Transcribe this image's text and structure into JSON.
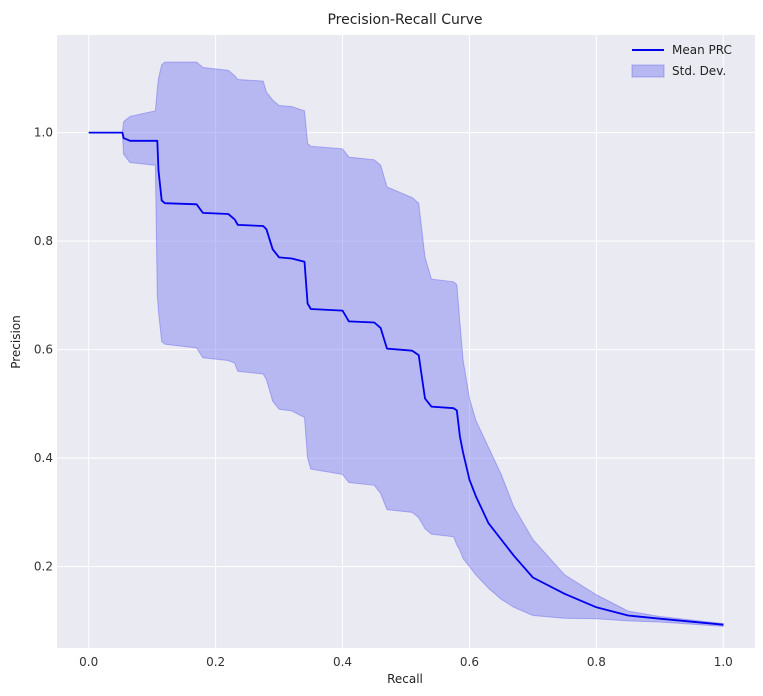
{
  "chart_data": {
    "type": "line",
    "title": "Precision-Recall Curve",
    "xlabel": "Recall",
    "ylabel": "Precision",
    "xlim": [
      -0.05,
      1.05
    ],
    "ylim": [
      0.05,
      1.18
    ],
    "xticks": [
      "0.0",
      "0.2",
      "0.4",
      "0.6",
      "0.8",
      "1.0"
    ],
    "yticks": [
      "0.2",
      "0.4",
      "0.6",
      "0.8",
      "1.0"
    ],
    "grid": true,
    "legend_position": "top-right",
    "background_color": "#eaeaf2",
    "series": [
      {
        "name": "Mean PRC",
        "kind": "line",
        "color": "#0000ee",
        "x": [
          0.0,
          0.053,
          0.055,
          0.065,
          0.108,
          0.11,
          0.115,
          0.12,
          0.17,
          0.18,
          0.22,
          0.23,
          0.235,
          0.275,
          0.28,
          0.29,
          0.3,
          0.32,
          0.34,
          0.345,
          0.35,
          0.4,
          0.41,
          0.45,
          0.46,
          0.47,
          0.51,
          0.52,
          0.53,
          0.54,
          0.575,
          0.58,
          0.585,
          0.59,
          0.6,
          0.61,
          0.63,
          0.65,
          0.67,
          0.7,
          0.75,
          0.8,
          0.85,
          0.9,
          1.0
        ],
        "y": [
          1.0,
          1.0,
          0.99,
          0.985,
          0.985,
          0.93,
          0.875,
          0.87,
          0.868,
          0.852,
          0.85,
          0.84,
          0.83,
          0.828,
          0.822,
          0.785,
          0.77,
          0.768,
          0.762,
          0.685,
          0.675,
          0.672,
          0.652,
          0.65,
          0.64,
          0.602,
          0.598,
          0.59,
          0.51,
          0.495,
          0.492,
          0.488,
          0.44,
          0.41,
          0.36,
          0.33,
          0.28,
          0.25,
          0.22,
          0.18,
          0.15,
          0.125,
          0.11,
          0.104,
          0.093
        ]
      },
      {
        "name": "Std. Dev.",
        "kind": "band",
        "color": "#6464ee",
        "x": [
          0.0,
          0.053,
          0.055,
          0.065,
          0.105,
          0.108,
          0.11,
          0.115,
          0.12,
          0.17,
          0.18,
          0.22,
          0.23,
          0.235,
          0.275,
          0.28,
          0.29,
          0.3,
          0.32,
          0.34,
          0.345,
          0.35,
          0.4,
          0.41,
          0.45,
          0.46,
          0.47,
          0.51,
          0.52,
          0.53,
          0.54,
          0.575,
          0.58,
          0.585,
          0.59,
          0.6,
          0.61,
          0.63,
          0.65,
          0.67,
          0.7,
          0.75,
          0.8,
          0.85,
          0.9,
          1.0
        ],
        "upper": [
          1.0,
          1.0,
          1.02,
          1.03,
          1.04,
          1.08,
          1.1,
          1.125,
          1.13,
          1.13,
          1.12,
          1.115,
          1.105,
          1.098,
          1.095,
          1.075,
          1.06,
          1.05,
          1.048,
          1.04,
          0.98,
          0.975,
          0.97,
          0.955,
          0.95,
          0.94,
          0.9,
          0.88,
          0.87,
          0.77,
          0.73,
          0.725,
          0.72,
          0.65,
          0.58,
          0.51,
          0.47,
          0.42,
          0.37,
          0.31,
          0.25,
          0.185,
          0.148,
          0.118,
          0.108,
          0.095
        ],
        "lower": [
          1.0,
          1.0,
          0.96,
          0.945,
          0.94,
          0.7,
          0.67,
          0.615,
          0.61,
          0.603,
          0.585,
          0.58,
          0.575,
          0.56,
          0.555,
          0.545,
          0.505,
          0.49,
          0.487,
          0.475,
          0.4,
          0.38,
          0.37,
          0.355,
          0.35,
          0.335,
          0.305,
          0.3,
          0.29,
          0.27,
          0.26,
          0.255,
          0.24,
          0.23,
          0.215,
          0.2,
          0.185,
          0.16,
          0.14,
          0.125,
          0.11,
          0.105,
          0.104,
          0.1,
          0.098,
          0.09
        ]
      }
    ]
  }
}
